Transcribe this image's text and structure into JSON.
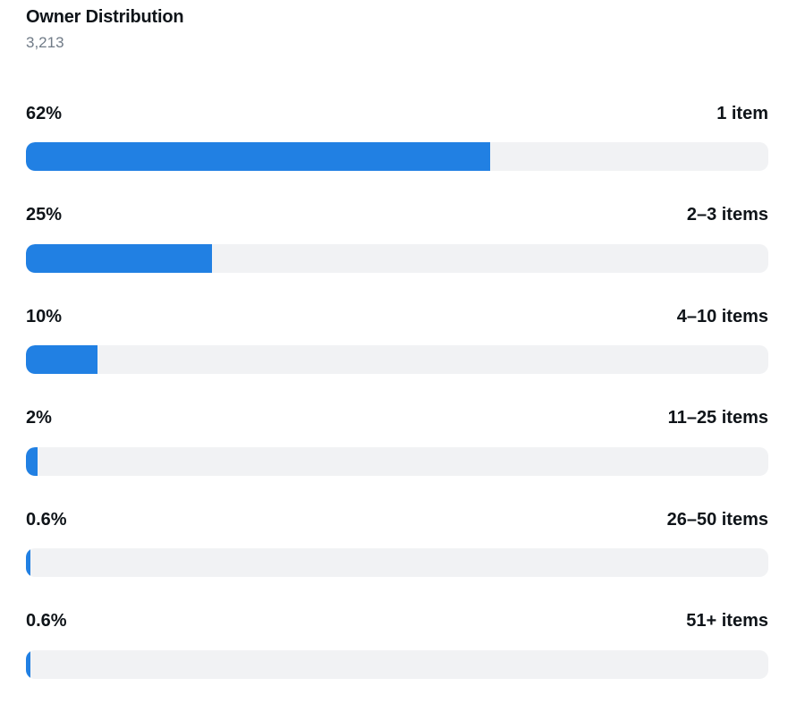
{
  "header": {
    "title": "Owner Distribution",
    "total": "3,213"
  },
  "rows": [
    {
      "percent_label": "62%",
      "range_label": "1 item",
      "value": 0.625
    },
    {
      "percent_label": "25%",
      "range_label": "2–3 items",
      "value": 0.25
    },
    {
      "percent_label": "10%",
      "range_label": "4–10 items",
      "value": 0.096
    },
    {
      "percent_label": "2%",
      "range_label": "11–25 items",
      "value": 0.016
    },
    {
      "percent_label": "0.6%",
      "range_label": "26–50 items",
      "value": 0.006
    },
    {
      "percent_label": "0.6%",
      "range_label": "51+ items",
      "value": 0.006
    }
  ],
  "colors": {
    "bar_fill": "#2180e3",
    "bar_track": "#f1f2f4",
    "subtitle": "#707b87"
  }
}
